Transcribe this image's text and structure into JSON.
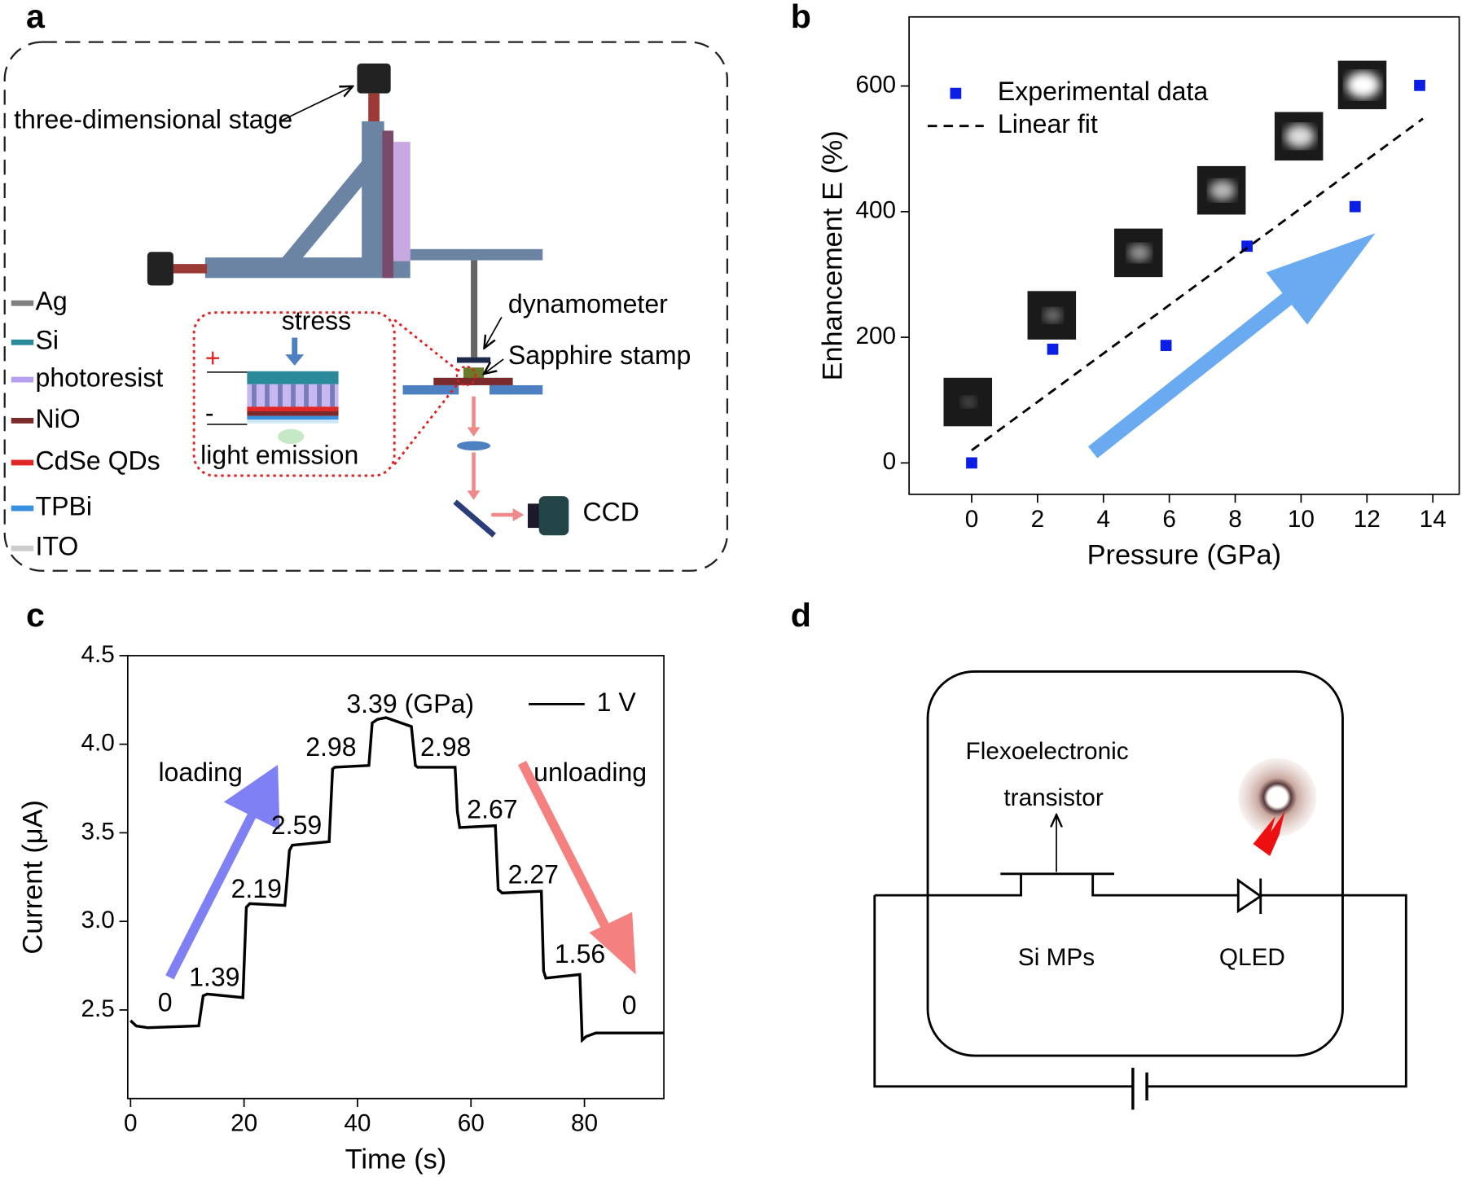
{
  "panel_labels": [
    "a",
    "b",
    "c",
    "d"
  ],
  "diagram_a": {
    "stage": "three-dimensional stage",
    "dynamometer": "dynamometer",
    "stamp": "Sapphire stamp",
    "stress": "stress",
    "light": "light emission",
    "ccd": "CCD",
    "plus": "+",
    "minus": "-",
    "legend": [
      "Ag",
      "Si",
      "photoresist",
      "NiO",
      "CdSe QDs",
      "TPBi",
      "ITO"
    ]
  },
  "chart_data": [
    {
      "type": "scatter",
      "xlabel": "Pressure (GPa)",
      "ylabel": "Enhancement E (%)",
      "xlim": [
        -1.9,
        14.8
      ],
      "ylim": [
        -50,
        710
      ],
      "xticks": [
        0,
        2,
        4,
        6,
        8,
        10,
        12,
        14
      ],
      "yticks": [
        0,
        200,
        400,
        600
      ],
      "legend": "upper left",
      "series": [
        {
          "name": "Experimental data",
          "type": "scatter",
          "color": "#0a1ee6",
          "x": [
            0,
            2.46,
            5.9,
            8.36,
            11.64,
            13.6
          ],
          "values": [
            0,
            181,
            187,
            345,
            408,
            601
          ]
        },
        {
          "name": "Linear fit",
          "type": "line",
          "dashed": true,
          "color": "#000000",
          "x": [
            0,
            13.7
          ],
          "values": [
            20,
            548
          ]
        }
      ]
    },
    {
      "type": "line",
      "xlabel": "Time (s)",
      "ylabel": "Current (μA)",
      "xlim": [
        -0.5,
        94
      ],
      "ylim": [
        2.0,
        4.5
      ],
      "xticks": [
        0,
        20,
        40,
        60,
        80
      ],
      "yticks": [
        2.5,
        {
          "value": 3,
          "label": "3.0"
        },
        3.5,
        {
          "value": 4,
          "label": "4.0"
        },
        4.5
      ],
      "legend": "upper right",
      "series": [
        {
          "name": "1 V",
          "color": "#000000",
          "x": [
            0,
            1,
            3,
            12,
            12.8,
            13.5,
            19.8,
            20.4,
            21,
            27.2,
            28,
            28.5,
            35,
            35.6,
            36,
            42,
            42.6,
            43.5,
            45,
            49.5,
            50.2,
            50.6,
            57.2,
            57.6,
            58,
            64.3,
            64.8,
            65.5,
            72.4,
            72.8,
            73.2,
            79.2,
            79.6,
            80.3,
            82,
            90,
            94
          ],
          "values": [
            2.44,
            2.41,
            2.4,
            2.41,
            2.58,
            2.59,
            2.57,
            3.08,
            3.1,
            3.09,
            3.4,
            3.43,
            3.45,
            3.86,
            3.87,
            3.88,
            4.12,
            4.14,
            4.15,
            4.1,
            3.88,
            3.87,
            3.87,
            3.62,
            3.53,
            3.54,
            3.18,
            3.16,
            3.17,
            2.72,
            2.68,
            2.7,
            2.33,
            2.35,
            2.37,
            2.37,
            2.37
          ]
        }
      ],
      "annotations": [
        "0",
        "1.39",
        "2.19",
        "2.59",
        "2.98",
        "3.39 (GPa)",
        "2.98",
        "2.67",
        "2.27",
        "1.56",
        "0",
        "loading",
        "unloading"
      ]
    }
  ],
  "diagram_d": {
    "transistor_1": "Flexoelectronic",
    "transistor_2": "transistor",
    "si": "Si MPs",
    "qled": "QLED"
  }
}
